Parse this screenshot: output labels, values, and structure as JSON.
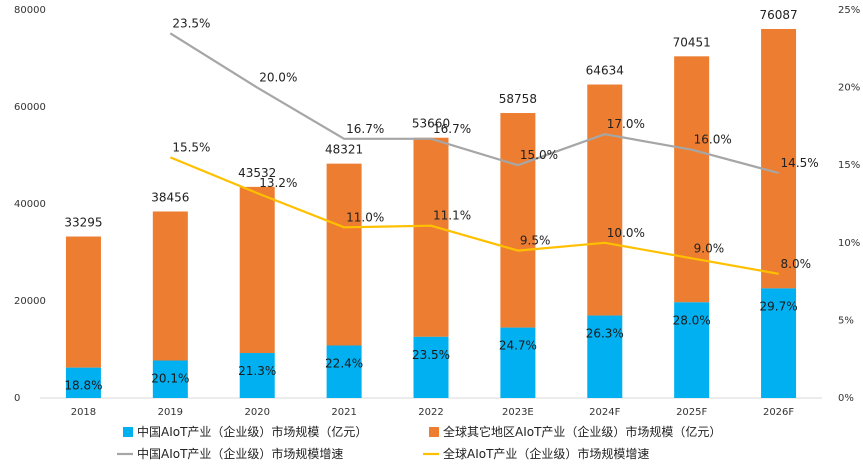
{
  "chart_data": {
    "type": "bar",
    "categories": [
      "2018",
      "2019",
      "2020",
      "2021",
      "2022",
      "2023E",
      "2024F",
      "2025F",
      "2026F"
    ],
    "totals": [
      33295,
      38456,
      43532,
      48321,
      53660,
      58758,
      64634,
      70451,
      76087
    ],
    "total_labels": [
      "33295",
      "38456",
      "43532",
      "48321",
      "53660",
      "58758",
      "64634",
      "70451",
      "76087"
    ],
    "series": [
      {
        "name": "中国AIoT产业（企业级）市场规模（亿元）",
        "kind": "bar",
        "color": "#00b0f0",
        "share_pct": [
          18.8,
          20.1,
          21.3,
          22.4,
          23.5,
          24.7,
          26.3,
          28.0,
          29.7
        ],
        "share_labels": [
          "18.8%",
          "20.1%",
          "21.3%",
          "22.4%",
          "23.5%",
          "24.7%",
          "26.3%",
          "28.0%",
          "29.7%"
        ]
      },
      {
        "name": "全球其它地区AIoT产业（企业级）市场规模（亿元）",
        "kind": "bar",
        "color": "#ed7d31"
      },
      {
        "name": "中国AIoT产业（企业级）市场规模增速",
        "kind": "line",
        "axis": "right",
        "color": "#a6a6a6",
        "values": [
          null,
          23.5,
          20.0,
          16.7,
          16.7,
          15.0,
          17.0,
          16.0,
          14.5
        ],
        "labels": [
          "",
          "23.5%",
          "20.0%",
          "16.7%",
          "16.7%",
          "15.0%",
          "17.0%",
          "16.0%",
          "14.5%"
        ]
      },
      {
        "name": "全球AIoT产业（企业级）市场规模增速",
        "kind": "line",
        "axis": "right",
        "color": "#ffc000",
        "values": [
          null,
          15.5,
          13.2,
          11.0,
          11.1,
          9.5,
          10.0,
          9.0,
          8.0
        ],
        "labels": [
          "",
          "15.5%",
          "13.2%",
          "11.0%",
          "11.1%",
          "9.5%",
          "10.0%",
          "9.0%",
          "8.0%"
        ]
      }
    ],
    "y_left": {
      "ylim": [
        0,
        80000
      ],
      "ticks": [
        0,
        20000,
        40000,
        60000,
        80000
      ],
      "tick_labels": [
        "0",
        "20000",
        "40000",
        "60000",
        "80000"
      ]
    },
    "y_right": {
      "ylim": [
        0,
        25
      ],
      "ticks": [
        0,
        5,
        10,
        15,
        20,
        25
      ],
      "tick_labels": [
        "0%",
        "5%",
        "10%",
        "15%",
        "20%",
        "25%"
      ]
    },
    "legend": {
      "placement": "bottom",
      "items": [
        {
          "label": "中国AIoT产业（企业级）市场规模（亿元）",
          "marker": "square",
          "color": "#00b0f0"
        },
        {
          "label": "全球其它地区AIoT产业（企业级）市场规模（亿元）",
          "marker": "square",
          "color": "#ed7d31"
        },
        {
          "label": "中国AIoT产业（企业级）市场规模增速",
          "marker": "line",
          "color": "#a6a6a6"
        },
        {
          "label": "全球AIoT产业（企业级）市场规模增速",
          "marker": "line",
          "color": "#ffc000"
        }
      ]
    },
    "grid": false
  }
}
